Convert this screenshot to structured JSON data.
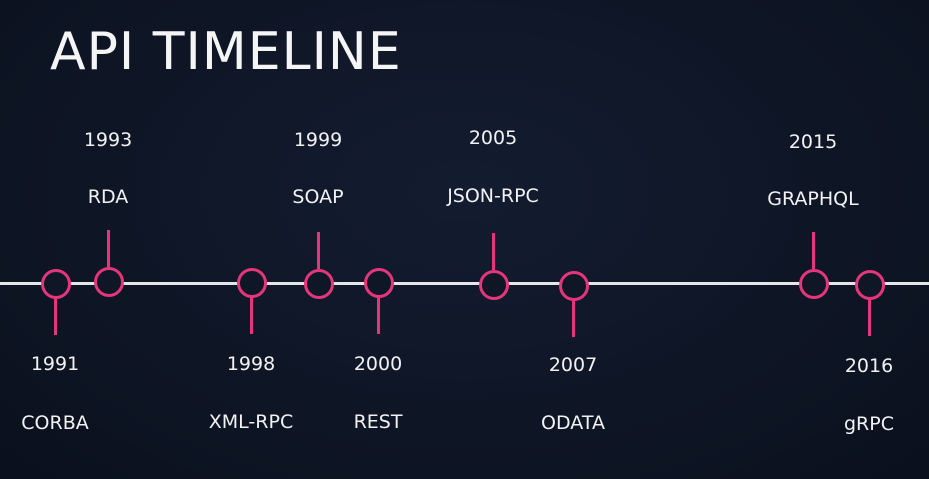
{
  "title": "API TIMELINE",
  "colors": {
    "background": "#0e1526",
    "axis": "#e6e6ea",
    "accent": "#e5357b",
    "text": "#f2f2f2"
  },
  "events": [
    {
      "year": "1991",
      "name": "CORBA",
      "side": "below"
    },
    {
      "year": "1993",
      "name": "RDA",
      "side": "above"
    },
    {
      "year": "1998",
      "name": "XML-RPC",
      "side": "below"
    },
    {
      "year": "1999",
      "name": "SOAP",
      "side": "above"
    },
    {
      "year": "2000",
      "name": "REST",
      "side": "below"
    },
    {
      "year": "2005",
      "name": "JSON-RPC",
      "side": "above"
    },
    {
      "year": "2007",
      "name": "ODATA",
      "side": "below"
    },
    {
      "year": "2015",
      "name": "GRAPHQL",
      "side": "above"
    },
    {
      "year": "2016",
      "name": "gRPC",
      "side": "below"
    }
  ]
}
